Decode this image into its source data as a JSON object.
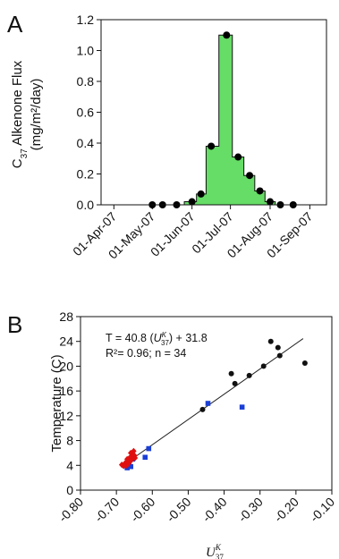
{
  "chart_data": [
    {
      "panel": "A",
      "type": "step-area",
      "ylabel_line1": "C37 Alkenone Flux",
      "ylabel_prefix": "C",
      "ylabel_sub": "37",
      "ylabel_rest": " Alkenone Flux",
      "ylabel_line2": "(mg/m²/day)",
      "ylim": [
        0,
        1.2
      ],
      "yticks": [
        "0.0",
        "0.2",
        "0.4",
        "0.6",
        "0.8",
        "1.0",
        "1.2"
      ],
      "xticks": [
        "01-Apr-07",
        "01-May-07",
        "01-Jun-07",
        "01-Jul-07",
        "01-Aug-07",
        "01-Sep-07"
      ],
      "fill_color": "#66dd66",
      "x": [
        "2007-05-01",
        "2007-05-09",
        "2007-05-20",
        "2007-06-01",
        "2007-06-08",
        "2007-06-16",
        "2007-06-28",
        "2007-07-07",
        "2007-07-16",
        "2007-07-24",
        "2007-08-01",
        "2007-08-09",
        "2007-08-19"
      ],
      "values": [
        0.0,
        0.0,
        0.0,
        0.02,
        0.07,
        0.38,
        1.1,
        0.31,
        0.19,
        0.09,
        0.02,
        0.0,
        0.0
      ]
    },
    {
      "panel": "B",
      "type": "scatter",
      "xlabel": "U37K",
      "xlabel_main": "U",
      "xlabel_sup": "K",
      "xlabel_sub": "37",
      "ylabel": "Temperature (C)",
      "xlim": [
        -0.8,
        -0.1
      ],
      "ylim": [
        0,
        28
      ],
      "xticks": [
        "-0.80",
        "-0.70",
        "-0.60",
        "-0.50",
        "-0.40",
        "-0.30",
        "-0.20",
        "-0.10"
      ],
      "yticks": [
        "0",
        "4",
        "8",
        "12",
        "16",
        "20",
        "24",
        "28"
      ],
      "equation_prefix": "T = 40.8 (",
      "equation_suffix": ") + 31.8",
      "stats": "R²= 0.96; n = 34",
      "regression": {
        "slope": 40.8,
        "intercept": 31.8,
        "x_range": [
          -0.68,
          -0.18
        ]
      },
      "series": [
        {
          "color": "#111111",
          "marker": "circle",
          "points": [
            [
              -0.46,
              13.0
            ],
            [
              -0.38,
              18.8
            ],
            [
              -0.37,
              17.2
            ],
            [
              -0.33,
              18.5
            ],
            [
              -0.29,
              20.0
            ],
            [
              -0.27,
              24.0
            ],
            [
              -0.25,
              23.0
            ],
            [
              -0.245,
              21.7
            ],
            [
              -0.175,
              20.5
            ]
          ]
        },
        {
          "color": "#1a3fd6",
          "marker": "square",
          "points": [
            [
              -0.67,
              3.6
            ],
            [
              -0.665,
              4.3
            ],
            [
              -0.66,
              3.8
            ],
            [
              -0.655,
              5.0
            ],
            [
              -0.62,
              5.3
            ],
            [
              -0.61,
              6.7
            ],
            [
              -0.445,
              14.0
            ],
            [
              -0.35,
              13.4
            ]
          ]
        },
        {
          "color": "#e01010",
          "marker": "diamond",
          "points": [
            [
              -0.685,
              4.1
            ],
            [
              -0.68,
              3.9
            ],
            [
              -0.675,
              4.4
            ],
            [
              -0.672,
              4.0
            ],
            [
              -0.67,
              4.7
            ],
            [
              -0.668,
              4.2
            ],
            [
              -0.665,
              5.1
            ],
            [
              -0.662,
              4.6
            ],
            [
              -0.66,
              5.4
            ],
            [
              -0.658,
              4.9
            ],
            [
              -0.655,
              5.8
            ],
            [
              -0.652,
              6.3
            ],
            [
              -0.65,
              5.6
            ],
            [
              -0.648,
              5.2
            ],
            [
              -0.665,
              4.5
            ],
            [
              -0.67,
              5.0
            ],
            [
              -0.66,
              6.0
            ]
          ]
        }
      ]
    }
  ]
}
